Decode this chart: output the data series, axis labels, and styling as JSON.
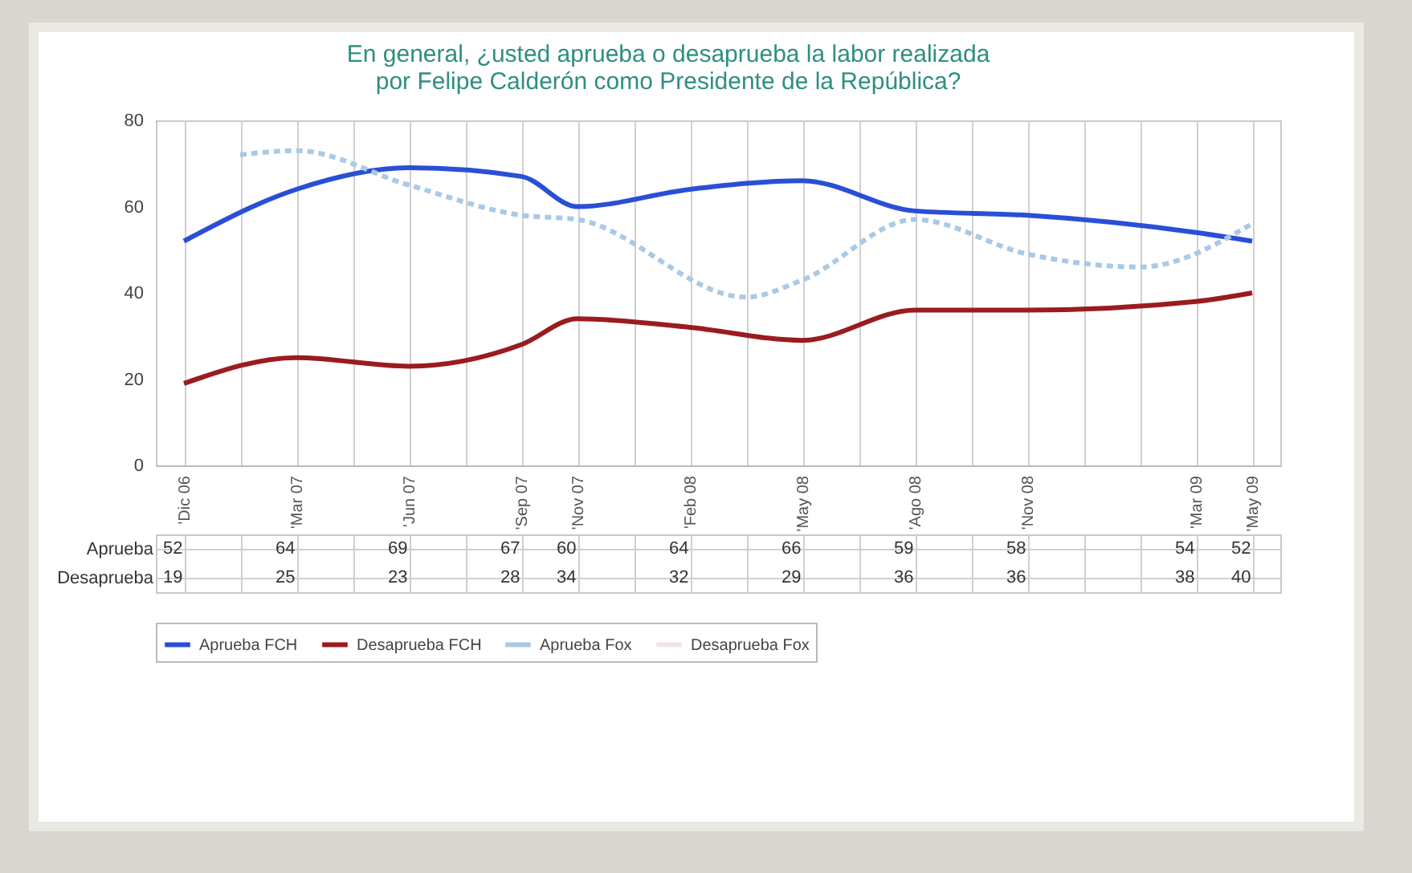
{
  "chart_data": {
    "type": "line",
    "title": "En general, ¿usted aprueba o desaprueba la labor realizada por Felipe Calderón como Presidente de la República?",
    "categories": [
      "'Dic 06",
      null,
      "'Mar 07",
      null,
      "'Jun 07",
      null,
      "'Sep 07",
      "'Nov 07",
      null,
      "'Feb 08",
      null,
      "'May 08",
      null,
      "'Ago 08",
      null,
      "'Nov 08",
      null,
      null,
      "'Mar 09",
      "'May 09"
    ],
    "series": [
      {
        "name": "Aprueba FCH",
        "color": "#2a4fd6",
        "line_style": "solid",
        "values": [
          52,
          null,
          64,
          null,
          69,
          null,
          67,
          60,
          null,
          64,
          null,
          66,
          null,
          59,
          null,
          58,
          null,
          null,
          54,
          52
        ],
        "value_labels": [
          "52",
          null,
          "64",
          null,
          "69",
          null,
          "67",
          "60",
          null,
          "64",
          null,
          "66",
          null,
          "59",
          null,
          "58",
          null,
          null,
          "54",
          "52"
        ]
      },
      {
        "name": "Desaprueba FCH",
        "color": "#9b1b1e",
        "line_style": "solid",
        "values": [
          19,
          null,
          25,
          null,
          23,
          null,
          28,
          34,
          null,
          32,
          null,
          29,
          null,
          36,
          null,
          36,
          null,
          null,
          38,
          40
        ],
        "value_labels": [
          "19",
          null,
          "25",
          null,
          "23",
          null,
          "28",
          "34",
          null,
          "32",
          null,
          "29",
          null,
          "36",
          null,
          "36",
          null,
          null,
          "38",
          "40"
        ]
      },
      {
        "name": "Aprueba Fox",
        "color": "#a9c9e6",
        "line_style": "dashed",
        "values": [
          null,
          72,
          73,
          null,
          65,
          null,
          58,
          57,
          null,
          null,
          39,
          43,
          null,
          57,
          null,
          49,
          null,
          46,
          null,
          56
        ]
      },
      {
        "name": "Desaprueba Fox",
        "color": "#f3e4e4",
        "line_style": "dashed",
        "values": [
          null,
          null,
          null,
          null,
          null,
          null,
          null,
          null,
          null,
          null,
          null,
          null,
          null,
          null,
          null,
          null,
          null,
          null,
          null,
          null
        ]
      }
    ],
    "annotations": [
      "Aprueba",
      "Desaprueba"
    ],
    "ylim": [
      0,
      80
    ],
    "yticks": [
      0,
      20,
      40,
      60,
      80
    ],
    "grid": "x",
    "legend": "bottom",
    "marker": "none"
  }
}
